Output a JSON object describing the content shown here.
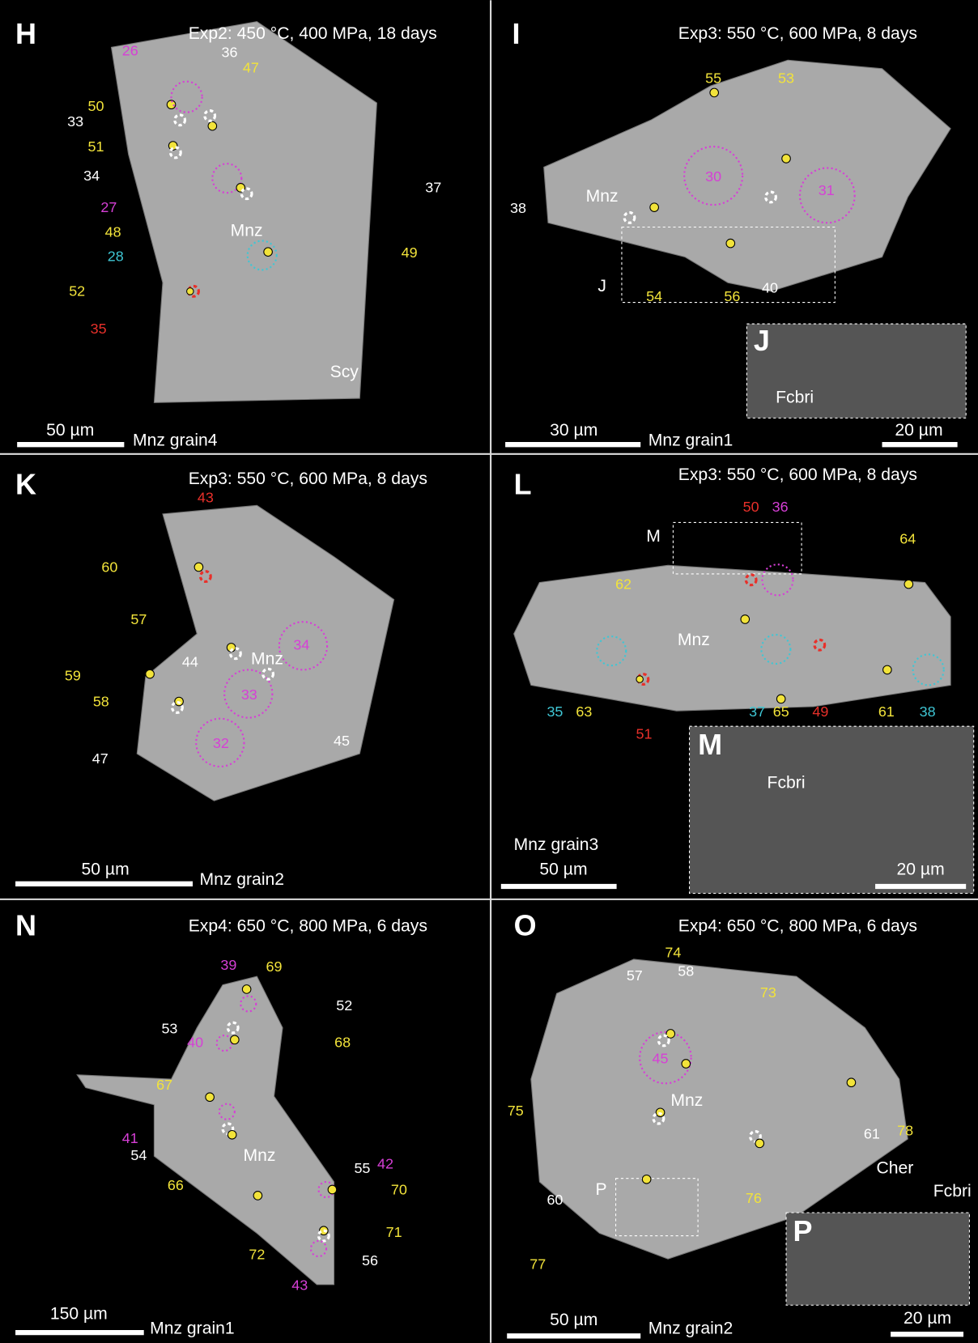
{
  "panels": [
    {
      "letter": "H",
      "condition": "Exp2: 450 °C, 400 MPa,  18 days",
      "scale_bar": "50 µm",
      "grain": "Mnz grain4",
      "labels": [
        "26",
        "50",
        "33",
        "51",
        "34",
        "27",
        "48",
        "28",
        "52",
        "35",
        "36",
        "47",
        "37",
        "Mnz",
        "49",
        "Scy"
      ]
    },
    {
      "letter": "I",
      "condition": "Exp3: 550 °C, 600 MPa, 8 days",
      "scale_bar": "30 µm",
      "grain": "Mnz grain1",
      "labels": [
        "55",
        "53",
        "30",
        "31",
        "38",
        "Mnz",
        "54",
        "56",
        "40",
        "J"
      ],
      "inset": {
        "letter": "J",
        "labels": [
          "Fcbri"
        ],
        "scale_bar": "20 µm"
      }
    },
    {
      "letter": "K",
      "condition": "Exp3: 550 °C, 600 MPa, 8 days",
      "scale_bar": "50 µm",
      "grain": "Mnz grain2",
      "labels": [
        "43",
        "60",
        "57",
        "34",
        "44",
        "Mnz",
        "59",
        "33",
        "58",
        "45",
        "32",
        "47"
      ]
    },
    {
      "letter": "L",
      "condition": "Exp3: 550 °C, 600 MPa, 8 days",
      "scale_bar": "50 µm",
      "grain": "Mnz grain3",
      "labels": [
        "M",
        "50",
        "36",
        "64",
        "62",
        "Mnz",
        "35",
        "63",
        "51",
        "37",
        "65",
        "49",
        "61",
        "38"
      ],
      "inset": {
        "letter": "M",
        "labels": [
          "Fcbri"
        ],
        "scale_bar": "20 µm"
      }
    },
    {
      "letter": "N",
      "condition": "Exp4: 650 °C, 800 MPa, 6 days",
      "scale_bar": "150 µm",
      "grain": "Mnz grain1",
      "labels": [
        "39",
        "69",
        "52",
        "53",
        "40",
        "68",
        "67",
        "41",
        "54",
        "Mnz",
        "66",
        "55",
        "42",
        "70",
        "71",
        "72",
        "56",
        "43"
      ]
    },
    {
      "letter": "O",
      "condition": "Exp4: 650 °C, 800 MPa, 6 days",
      "scale_bar": "50 µm",
      "grain": "Mnz grain2",
      "labels": [
        "74",
        "57",
        "58",
        "73",
        "45",
        "Mnz",
        "75",
        "78",
        "61",
        "Cher",
        "P",
        "60",
        "76",
        "77"
      ],
      "inset": {
        "letter": "P",
        "labels": [
          "Fcbri"
        ],
        "scale_bar": "20 µm"
      }
    }
  ]
}
